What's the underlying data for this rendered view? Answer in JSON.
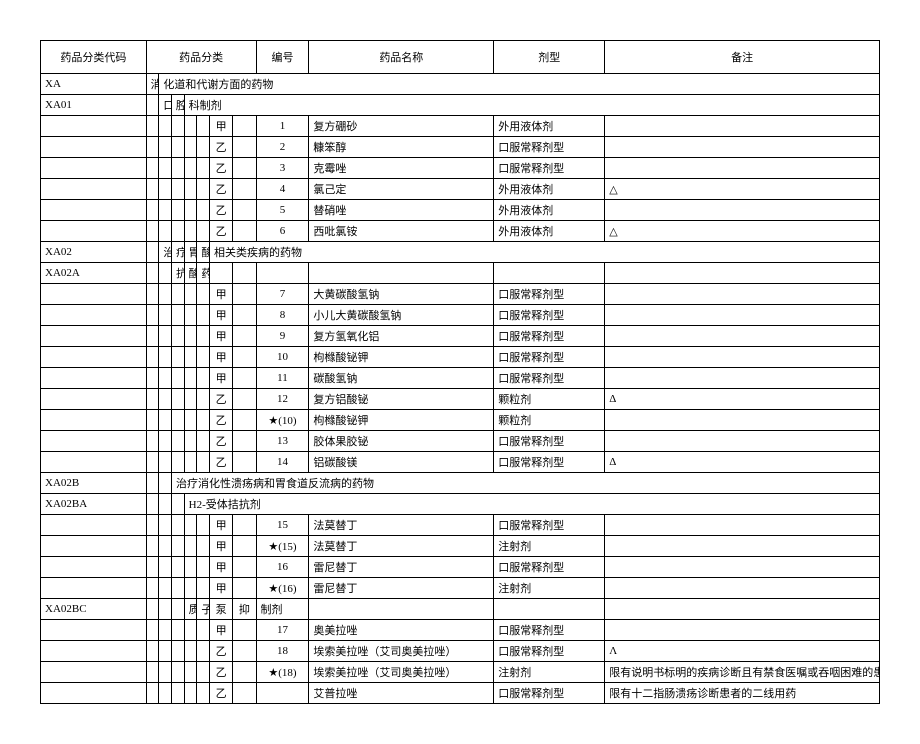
{
  "headers": {
    "code": "药品分类代码",
    "category": "药品分类",
    "number": "编号",
    "name": "药品名称",
    "dosage": "剂型",
    "remark": "备注"
  },
  "rows": [
    {
      "code": "XA",
      "s1": "消",
      "catspan": "化道和代谢方面的药物"
    },
    {
      "code": "XA01",
      "s2": "口",
      "s3": "腔",
      "catspan2": "科制剂"
    },
    {
      "s6": "甲",
      "num": "1",
      "name": "复方硼砂",
      "dosage": "外用液体剂",
      "remark": ""
    },
    {
      "s6": "乙",
      "num": "2",
      "name": "糠笨醇",
      "dosage": "口服常释剂型",
      "remark": ""
    },
    {
      "s6": "乙",
      "num": "3",
      "name": "克霉唑",
      "dosage": "口服常释剂型",
      "remark": ""
    },
    {
      "s6": "乙",
      "num": "4",
      "name": "氯己定",
      "dosage": "外用液体剂",
      "remark": "△"
    },
    {
      "s6": "乙",
      "num": "5",
      "name": "替硝唑",
      "dosage": "外用液体剂",
      "remark": ""
    },
    {
      "s6": "乙",
      "num": "6",
      "name": "西吡氯铵",
      "dosage": "外用液体剂",
      "remark": "△"
    },
    {
      "code": "XA02",
      "s2": "治",
      "s3": "疗",
      "s4": "胃",
      "s5": "酸",
      "catspan3": "相关类疾病的药物"
    },
    {
      "code": "XA02A",
      "s3": "抗",
      "s4": "酸",
      "s5": "药"
    },
    {
      "s6": "甲",
      "num": "7",
      "name": "大黄碳酸氢钠",
      "dosage": "口服常释剂型",
      "remark": ""
    },
    {
      "s6": "甲",
      "num": "8",
      "name": "小儿大黄碳酸氢钠",
      "dosage": "口服常释剂型",
      "remark": ""
    },
    {
      "s6": "甲",
      "num": "9",
      "name": "复方氢氧化铝",
      "dosage": "口服常释剂型",
      "remark": ""
    },
    {
      "s6": "甲",
      "num": "10",
      "name": "枸橼酸铋钾",
      "dosage": "口服常释剂型",
      "remark": ""
    },
    {
      "s6": "甲",
      "num": "11",
      "name": "碳酸氢钠",
      "dosage": "口服常释剂型",
      "remark": ""
    },
    {
      "s6": "乙",
      "num": "12",
      "name": "复方铝酸铋",
      "dosage": "颗粒剂",
      "remark": "Δ"
    },
    {
      "s6": "乙",
      "num": "★(10)",
      "name": "枸橼酸铋钾",
      "dosage": "颗粒剂",
      "remark": ""
    },
    {
      "s6": "乙",
      "num": "13",
      "name": "胶体果胶铋",
      "dosage": "口服常释剂型",
      "remark": ""
    },
    {
      "s6": "乙",
      "num": "14",
      "name": "铝碳酸镁",
      "dosage": "口服常释剂型",
      "remark": "Δ"
    },
    {
      "code": "XA02B",
      "s3text": "治疗消化性溃疡病和胃食道反流病的药物"
    },
    {
      "code": "XA02BA",
      "s4text": "H2-受体拮抗剂"
    },
    {
      "s6": "甲",
      "num": "15",
      "name": "法莫替丁",
      "dosage": "口服常释剂型",
      "remark": ""
    },
    {
      "s6": "甲",
      "num": "★(15)",
      "name": "法莫替丁",
      "dosage": "注射剂",
      "remark": ""
    },
    {
      "s6": "甲",
      "num": "16",
      "name": "雷尼替丁",
      "dosage": "口服常释剂型",
      "remark": ""
    },
    {
      "s6": "甲",
      "num": "★(16)",
      "name": "雷尼替丁",
      "dosage": "注射剂",
      "remark": ""
    },
    {
      "code": "XA02BC",
      "s4": "质",
      "s5": "子",
      "s6": "泵",
      "s7": "抑",
      "numtext": "制剂"
    },
    {
      "s6": "甲",
      "num": "17",
      "name": "奥美拉唑",
      "dosage": "口服常释剂型",
      "remark": ""
    },
    {
      "s6": "乙",
      "num": "18",
      "name": "埃索美拉唑（艾司奥美拉唑）",
      "dosage": "口服常释剂型",
      "remark": "Λ"
    },
    {
      "s6": "乙",
      "num": "★(18)",
      "name": "埃索美拉唑（艾司奥美拉唑）",
      "dosage": "注射剂",
      "remark": "限有说明书标明的疾病诊断且有禁食医嘱或吞咽困难的患者"
    },
    {
      "s6": "乙",
      "num": "",
      "name": "艾普拉唑",
      "dosage": "口服常释剂型",
      "remark": "限有十二指肠溃疡诊断患者的二线用药"
    }
  ]
}
